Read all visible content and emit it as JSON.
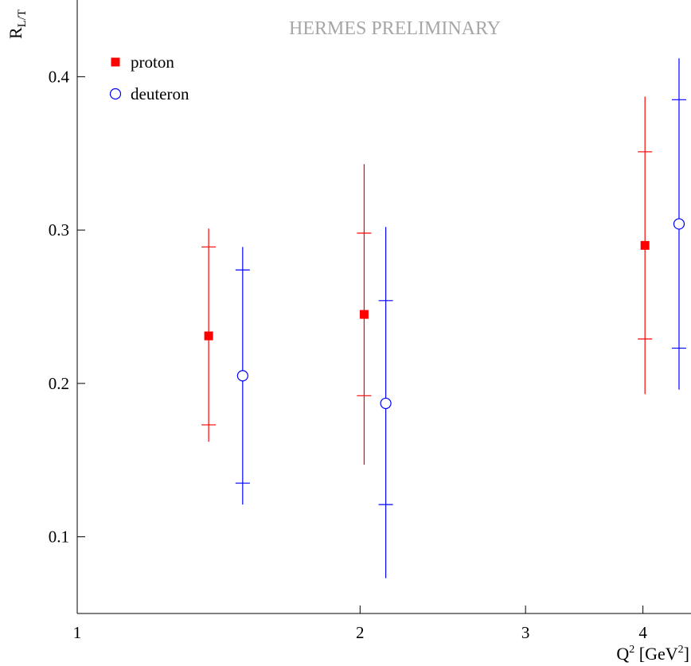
{
  "chart_data": {
    "type": "scatter",
    "watermark": "HERMES PRELIMINARY",
    "ylabel": {
      "main": "R",
      "sub": "L/T"
    },
    "xlabel": {
      "q": "Q",
      "q_sup": "2",
      "unit_open": " [GeV",
      "unit_sup": "2",
      "unit_close": "]"
    },
    "x_scale": "log",
    "xlim": [
      1,
      4.5
    ],
    "ylim": [
      0.05,
      0.45
    ],
    "x_ticks": [
      {
        "value": 1,
        "label": "1"
      },
      {
        "value": 2,
        "label": "2"
      },
      {
        "value": 3,
        "label": "3"
      },
      {
        "value": 4,
        "label": "4"
      }
    ],
    "y_ticks": [
      {
        "value": 0.1,
        "label": "0.1"
      },
      {
        "value": 0.2,
        "label": "0.2"
      },
      {
        "value": 0.3,
        "label": "0.3"
      },
      {
        "value": 0.4,
        "label": "0.4"
      }
    ],
    "legend_position": "top-left",
    "series": [
      {
        "name": "proton",
        "marker": "filled-square",
        "color": "#ff0000",
        "points": [
          {
            "x": 1.38,
            "y": 0.231,
            "stat_low": 0.173,
            "stat_high": 0.289,
            "tot_low": 0.162,
            "tot_high": 0.301
          },
          {
            "x": 2.02,
            "y": 0.245,
            "stat_low": 0.192,
            "stat_high": 0.298,
            "tot_low": 0.147,
            "tot_high": 0.343
          },
          {
            "x": 4.02,
            "y": 0.29,
            "stat_low": 0.229,
            "stat_high": 0.351,
            "tot_low": 0.193,
            "tot_high": 0.387
          }
        ]
      },
      {
        "name": "deuteron",
        "marker": "open-circle",
        "color": "#0000ff",
        "points": [
          {
            "x": 1.5,
            "y": 0.205,
            "stat_low": 0.135,
            "stat_high": 0.274,
            "tot_low": 0.121,
            "tot_high": 0.289
          },
          {
            "x": 2.13,
            "y": 0.187,
            "stat_low": 0.121,
            "stat_high": 0.254,
            "tot_low": 0.073,
            "tot_high": 0.302
          },
          {
            "x": 4.37,
            "y": 0.304,
            "stat_low": 0.223,
            "stat_high": 0.385,
            "tot_low": 0.196,
            "tot_high": 0.412
          }
        ]
      }
    ]
  }
}
